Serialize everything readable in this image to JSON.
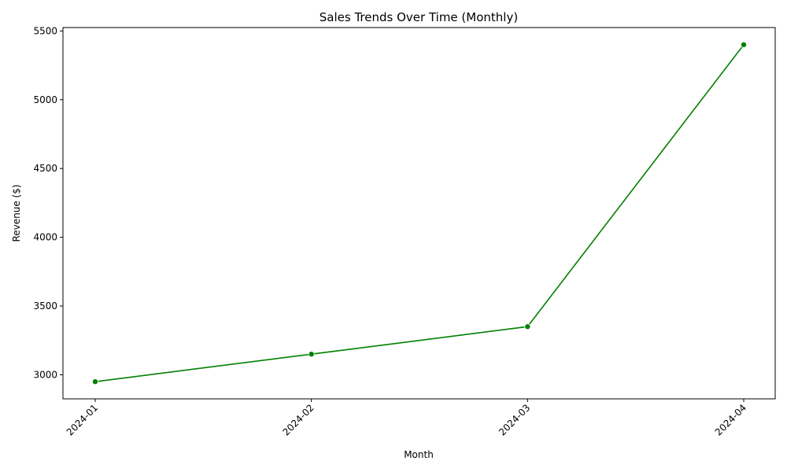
{
  "chart_data": {
    "type": "line",
    "title": "Sales Trends Over Time (Monthly)",
    "xlabel": "Month",
    "ylabel": "Revenue ($)",
    "x": [
      "2024-01",
      "2024-02",
      "2024-03",
      "2024-04"
    ],
    "y_ticks": [
      3000,
      3500,
      4000,
      4500,
      5000,
      5500
    ],
    "ylim": [
      2825,
      5525
    ],
    "grid": false,
    "series": [
      {
        "values": [
          2950,
          3150,
          3350,
          5400
        ],
        "color": "#008000",
        "marker": "circle"
      }
    ]
  }
}
